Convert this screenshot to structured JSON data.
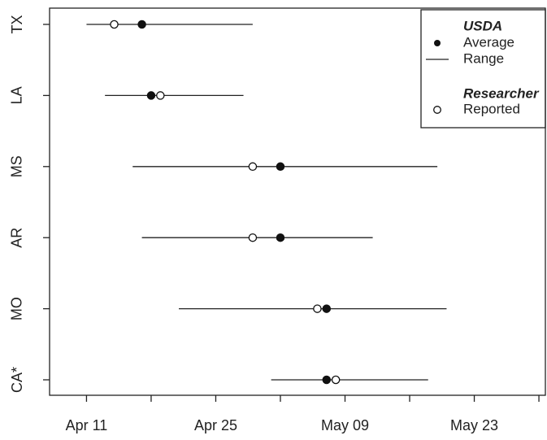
{
  "chart_data": {
    "type": "dot_range",
    "categories": [
      "TX",
      "LA",
      "MS",
      "AR",
      "MO",
      "CA*"
    ],
    "series": [
      {
        "name": "Average",
        "group": "USDA",
        "marker": "filled",
        "values": [
          107,
          108,
          122,
          122,
          127,
          127
        ]
      },
      {
        "name": "Reported",
        "group": "Researcher",
        "marker": "open",
        "values": [
          104,
          109,
          119,
          119,
          126,
          128
        ]
      }
    ],
    "range": {
      "name": "Range",
      "group": "USDA",
      "low": [
        101,
        103,
        106,
        107,
        111,
        121
      ],
      "high": [
        119,
        118,
        139,
        132,
        140,
        138
      ]
    },
    "legend_groups": [
      "USDA",
      "Researcher"
    ],
    "legend": "top-right",
    "xlim": [
      97,
      150.7
    ],
    "xticks": [
      {
        "value": 101,
        "label": "Apr 11"
      },
      {
        "value": 108,
        "label": null
      },
      {
        "value": 115,
        "label": "Apr 25"
      },
      {
        "value": 122,
        "label": null
      },
      {
        "value": 129,
        "label": "May 09"
      },
      {
        "value": 136,
        "label": null
      },
      {
        "value": 143,
        "label": "May 23"
      },
      {
        "value": 150,
        "label": null
      }
    ]
  }
}
